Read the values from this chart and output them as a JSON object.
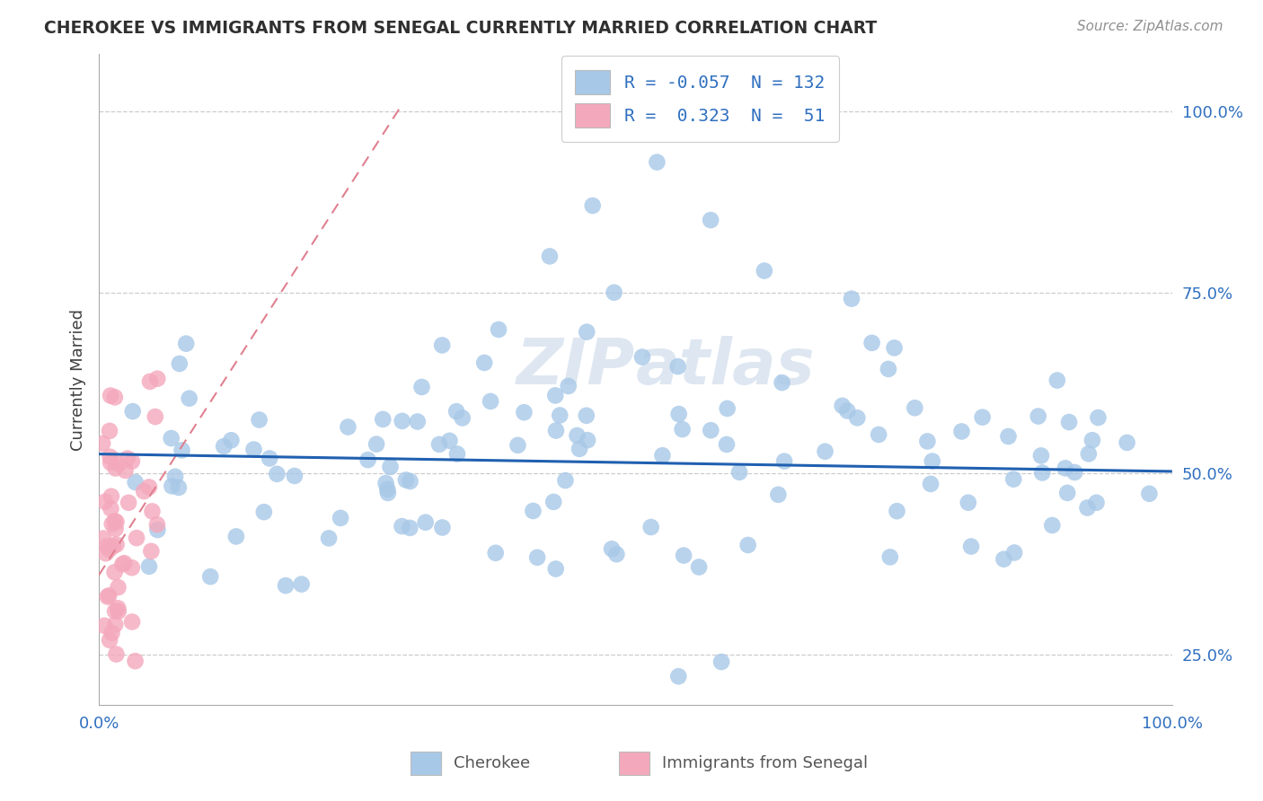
{
  "title": "CHEROKEE VS IMMIGRANTS FROM SENEGAL CURRENTLY MARRIED CORRELATION CHART",
  "source": "Source: ZipAtlas.com",
  "ylabel": "Currently Married",
  "legend_label_cherokee": "Cherokee",
  "legend_label_senegal": "Immigrants from Senegal",
  "r_cherokee": -0.057,
  "n_cherokee": 132,
  "r_senegal": 0.323,
  "n_senegal": 51,
  "cherokee_dot_color": "#a8c8e8",
  "senegal_dot_color": "#f4a8bc",
  "cherokee_line_color": "#2060b0",
  "senegal_line_color": "#e08090",
  "text_color_blue": "#3070c0",
  "background_color": "#ffffff",
  "grid_color": "#cccccc",
  "title_color": "#303030",
  "source_color": "#909090",
  "watermark_color": "#c8d8e8",
  "ytick_labels": [
    "25.0%",
    "50.0%",
    "75.0%",
    "100.0%"
  ],
  "ytick_values": [
    0.25,
    0.5,
    0.75,
    1.0
  ],
  "xtick_labels": [
    "0.0%",
    "100.0%"
  ],
  "xtick_values": [
    0.0,
    1.0
  ],
  "xlim": [
    0.0,
    1.0
  ],
  "ylim": [
    0.18,
    1.08
  ],
  "legend_r1": "R = -0.057",
  "legend_n1": "N = 132",
  "legend_r2": "R =  0.323",
  "legend_n2": "N =  51"
}
